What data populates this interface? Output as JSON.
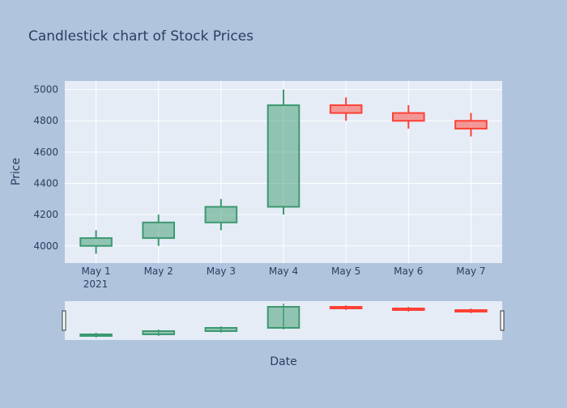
{
  "chart_data": {
    "type": "candlestick",
    "title": "Candlestick chart of Stock Prices",
    "xlabel": "Date",
    "ylabel": "Price",
    "year_label": "2021",
    "categories": [
      "May 1",
      "May 2",
      "May 3",
      "May 4",
      "May 5",
      "May 6",
      "May 7"
    ],
    "ylim": [
      3890,
      5055
    ],
    "yticks": [
      4000,
      4200,
      4400,
      4600,
      4800,
      5000
    ],
    "ytick_labels": [
      "4000",
      "4200",
      "4400",
      "4600",
      "4800",
      "5000"
    ],
    "candles": [
      {
        "date": "May 1",
        "open": 4000,
        "high": 4100,
        "low": 3950,
        "close": 4050
      },
      {
        "date": "May 2",
        "open": 4050,
        "high": 4200,
        "low": 4000,
        "close": 4150
      },
      {
        "date": "May 3",
        "open": 4150,
        "high": 4300,
        "low": 4100,
        "close": 4250
      },
      {
        "date": "May 4",
        "open": 4250,
        "high": 5000,
        "low": 4200,
        "close": 4900
      },
      {
        "date": "May 5",
        "open": 4900,
        "high": 4950,
        "low": 4800,
        "close": 4850
      },
      {
        "date": "May 6",
        "open": 4850,
        "high": 4900,
        "low": 4750,
        "close": 4800
      },
      {
        "date": "May 7",
        "open": 4800,
        "high": 4850,
        "low": 4700,
        "close": 4750
      }
    ],
    "grid": true,
    "has_range_slider": true,
    "colors": {
      "paper": "#b0c4de",
      "plot_bg": "#e5ecf6",
      "increasing_line": "#3d9970",
      "increasing_fill": "rgba(61,153,112,0.5)",
      "decreasing_line": "#ff4136",
      "decreasing_fill": "rgba(255,65,54,0.5)",
      "text": "#2a3f5f"
    }
  }
}
